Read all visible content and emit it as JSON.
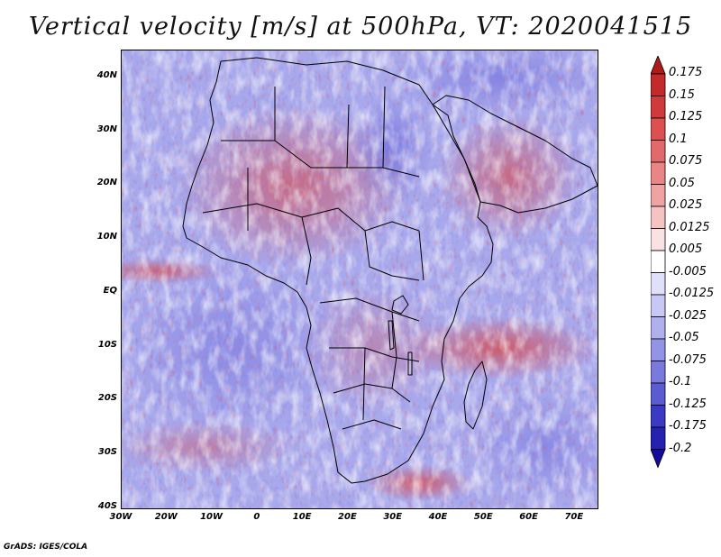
{
  "title": "Vertical velocity [m/s] at 500hPa, VT: 2020041515",
  "credit": "GrADS: IGES/COLA",
  "lat_labels": [
    "40N",
    "30N",
    "20N",
    "10N",
    "EQ",
    "10S",
    "20S",
    "30S",
    "40S"
  ],
  "lat_values": [
    40,
    30,
    20,
    10,
    0,
    -10,
    -20,
    -30,
    -40
  ],
  "lon_labels": [
    "30W",
    "20W",
    "10W",
    "0",
    "10E",
    "20E",
    "30E",
    "40E",
    "50E",
    "60E",
    "70E"
  ],
  "lon_values": [
    -30,
    -20,
    -10,
    0,
    10,
    20,
    30,
    40,
    50,
    60,
    70
  ],
  "map_extent": {
    "lon_min": -30,
    "lon_max": 75,
    "lat_min": -40,
    "lat_max": 45
  },
  "colorbar": {
    "labels": [
      "0.175",
      "0.15",
      "0.125",
      "0.1",
      "0.075",
      "0.05",
      "0.025",
      "0.0125",
      "0.005",
      "-0.005",
      "-0.0125",
      "-0.025",
      "-0.05",
      "-0.075",
      "-0.1",
      "-0.125",
      "-0.175",
      "-0.2"
    ],
    "colors": [
      "#b11a1a",
      "#c42a2a",
      "#d03a3a",
      "#dc5050",
      "#e36a6a",
      "#ea8585",
      "#f0a3a3",
      "#f6c3c3",
      "#fbe2e2",
      "#ffffff",
      "#e0e0fb",
      "#c8c8f4",
      "#b0b0ee",
      "#9494e6",
      "#7a7ade",
      "#5c5cd2",
      "#3a3ac4",
      "#2323b0",
      "#140c9e"
    ]
  },
  "colors": {
    "positive": "#d44545",
    "negative": "#5858d8",
    "neutral": "#f3f3ff",
    "border": "#000000"
  }
}
